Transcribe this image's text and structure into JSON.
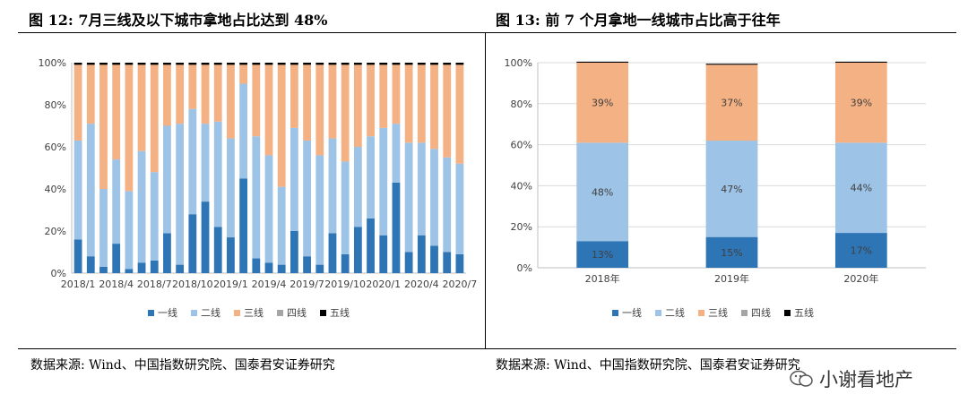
{
  "panels": [
    {
      "title": "图 12: 7月三线及以下城市拿地占比达到 48%",
      "source": "数据来源: Wind、中国指数研究院、国泰君安证券研究",
      "chart_data": {
        "type": "bar",
        "stacked": true,
        "percent": true,
        "categories": [
          "2018/1",
          "2018/2",
          "2018/3",
          "2018/4",
          "2018/5",
          "2018/6",
          "2018/7",
          "2018/8",
          "2018/9",
          "2018/10",
          "2018/11",
          "2018/12",
          "2019/1",
          "2019/2",
          "2019/3",
          "2019/4",
          "2019/5",
          "2019/6",
          "2019/7",
          "2019/8",
          "2019/9",
          "2019/10",
          "2019/11",
          "2019/12",
          "2020/1",
          "2020/2",
          "2020/3",
          "2020/4",
          "2020/5",
          "2020/6",
          "2020/7"
        ],
        "tick_labels": [
          "2018/1",
          "2018/4",
          "2018/7",
          "2018/10",
          "2019/1",
          "2019/4",
          "2019/7",
          "2019/10",
          "2020/1",
          "2020/4",
          "2020/7"
        ],
        "series": [
          {
            "name": "一线",
            "color": "#2e75b6",
            "values": [
              16,
              8,
              3,
              14,
              2,
              5,
              6,
              19,
              4,
              28,
              34,
              22,
              17,
              45,
              7,
              5,
              4,
              20,
              8,
              4,
              19,
              9,
              22,
              26,
              18,
              43,
              10,
              18,
              13,
              10,
              9
            ]
          },
          {
            "name": "二线",
            "color": "#9dc3e6",
            "values": [
              47,
              63,
              37,
              40,
              37,
              53,
              42,
              51,
              67,
              50,
              37,
              50,
              47,
              45,
              58,
              51,
              37,
              49,
              55,
              52,
              45,
              44,
              38,
              39,
              51,
              28,
              52,
              44,
              46,
              45,
              43
            ]
          },
          {
            "name": "三线",
            "color": "#f4b183",
            "values": [
              36,
              28,
              59,
              45,
              60,
              41,
              51,
              29,
              28,
              21,
              28,
              27,
              35,
              9,
              34,
              43,
              58,
              30,
              36,
              43,
              35,
              46,
              39,
              34,
              30,
              28,
              37,
              37,
              40,
              44,
              47
            ]
          },
          {
            "name": "四线",
            "color": "#a5a5a5",
            "values": [
              0,
              0,
              0,
              0,
              0,
              0,
              0,
              0,
              0,
              0,
              0,
              0,
              0,
              0,
              0,
              0,
              0,
              0,
              0,
              0,
              0,
              0,
              0,
              0,
              0,
              0,
              0,
              0,
              0,
              0,
              0
            ]
          },
          {
            "name": "五线",
            "color": "#000000",
            "values": [
              1,
              1,
              1,
              1,
              1,
              1,
              1,
              1,
              1,
              1,
              1,
              1,
              1,
              1,
              1,
              1,
              1,
              1,
              1,
              1,
              1,
              1,
              1,
              1,
              1,
              1,
              1,
              1,
              1,
              1,
              1
            ]
          }
        ],
        "ylim": [
          0,
          100
        ],
        "yticks": [
          "0%",
          "20%",
          "40%",
          "60%",
          "80%",
          "100%"
        ],
        "legend_position": "bottom"
      }
    },
    {
      "title": "图 13: 前 7 个月拿地一线城市占比高于往年",
      "source": "数据来源: Wind、中国指数研究院、国泰君安证券研究",
      "chart_data": {
        "type": "bar",
        "stacked": true,
        "percent": true,
        "categories": [
          "2018年",
          "2019年",
          "2020年"
        ],
        "series": [
          {
            "name": "一线",
            "color": "#2e75b6",
            "values": [
              13,
              15,
              17
            ],
            "labels": [
              "13%",
              "15%",
              "17%"
            ]
          },
          {
            "name": "二线",
            "color": "#9dc3e6",
            "values": [
              48,
              47,
              44
            ],
            "labels": [
              "48%",
              "47%",
              "44%"
            ]
          },
          {
            "name": "三线",
            "color": "#f4b183",
            "values": [
              39,
              37,
              39
            ],
            "labels": [
              "39%",
              "37%",
              "39%"
            ]
          },
          {
            "name": "四线",
            "color": "#a5a5a5",
            "values": [
              0,
              0,
              0
            ]
          },
          {
            "name": "五线",
            "color": "#000000",
            "values": [
              0.5,
              0.5,
              0.5
            ]
          }
        ],
        "ylim": [
          0,
          100
        ],
        "yticks": [
          "0%",
          "20%",
          "40%",
          "60%",
          "80%",
          "100%"
        ],
        "legend_position": "bottom"
      }
    }
  ],
  "watermark": "小谢看地产"
}
